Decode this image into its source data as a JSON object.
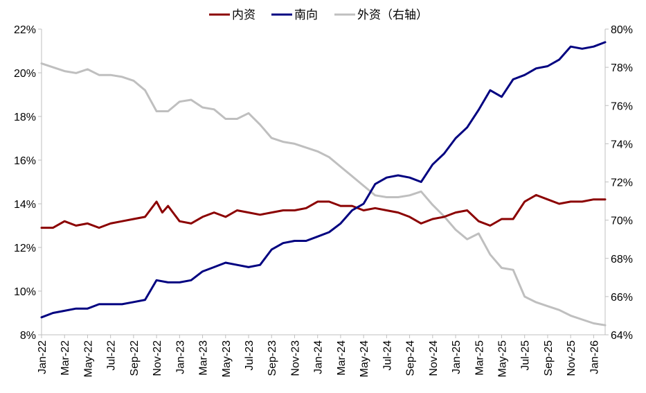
{
  "chart_data": {
    "type": "line",
    "title": "",
    "legend_position": "top-center",
    "grid": false,
    "x_ticks": [
      "Jan-22",
      "Mar-22",
      "May-22",
      "Jul-22",
      "Sep-22",
      "Nov-22",
      "Jan-23",
      "Mar-23",
      "May-23",
      "Jul-23",
      "Sep-23",
      "Nov-23",
      "Jan-24",
      "Mar-24",
      "May-24",
      "Jul-24",
      "Sep-24",
      "Nov-24",
      "Jan-25",
      "Mar-25",
      "May-25",
      "Jul-25",
      "Sep-25",
      "Nov-25",
      "Jan-26"
    ],
    "x_range": [
      "2022-01",
      "2026-02"
    ],
    "y_left": {
      "range": [
        8,
        22
      ],
      "ticks": [
        "8%",
        "10%",
        "12%",
        "14%",
        "16%",
        "18%",
        "20%",
        "22%"
      ]
    },
    "y_right": {
      "range": [
        64,
        80
      ],
      "ticks": [
        "64%",
        "66%",
        "68%",
        "70%",
        "72%",
        "74%",
        "76%",
        "78%",
        "80%"
      ]
    },
    "series": [
      {
        "name": "内资",
        "color": "#8B0000",
        "axis": "left",
        "points": [
          [
            "2022-01",
            12.9
          ],
          [
            "2022-02",
            12.9
          ],
          [
            "2022-03",
            13.2
          ],
          [
            "2022-04",
            13.0
          ],
          [
            "2022-05",
            13.1
          ],
          [
            "2022-06",
            12.9
          ],
          [
            "2022-07",
            13.1
          ],
          [
            "2022-08",
            13.2
          ],
          [
            "2022-09",
            13.3
          ],
          [
            "2022-10",
            13.4
          ],
          [
            "2022-11",
            14.1
          ],
          [
            "2022-11b",
            13.6
          ],
          [
            "2022-12",
            13.9
          ],
          [
            "2023-01",
            13.2
          ],
          [
            "2023-02",
            13.1
          ],
          [
            "2023-03",
            13.4
          ],
          [
            "2023-04",
            13.6
          ],
          [
            "2023-05",
            13.4
          ],
          [
            "2023-06",
            13.7
          ],
          [
            "2023-07",
            13.6
          ],
          [
            "2023-08",
            13.5
          ],
          [
            "2023-09",
            13.6
          ],
          [
            "2023-10",
            13.7
          ],
          [
            "2023-11",
            13.7
          ],
          [
            "2023-12",
            13.8
          ],
          [
            "2024-01",
            14.1
          ],
          [
            "2024-02",
            14.1
          ],
          [
            "2024-03",
            13.9
          ],
          [
            "2024-04",
            13.9
          ],
          [
            "2024-05",
            13.7
          ],
          [
            "2024-06",
            13.8
          ],
          [
            "2024-07",
            13.7
          ],
          [
            "2024-08",
            13.6
          ],
          [
            "2024-09",
            13.4
          ],
          [
            "2024-10",
            13.1
          ],
          [
            "2024-11",
            13.3
          ],
          [
            "2024-12",
            13.4
          ],
          [
            "2025-01",
            13.6
          ],
          [
            "2025-02",
            13.7
          ],
          [
            "2025-03",
            13.2
          ],
          [
            "2025-04",
            13.0
          ],
          [
            "2025-05",
            13.3
          ],
          [
            "2025-06",
            13.3
          ],
          [
            "2025-07",
            14.1
          ],
          [
            "2025-08",
            14.4
          ],
          [
            "2025-09",
            14.2
          ],
          [
            "2025-10",
            14.0
          ],
          [
            "2025-11",
            14.1
          ],
          [
            "2025-12",
            14.1
          ],
          [
            "2026-01",
            14.2
          ],
          [
            "2026-02",
            14.2
          ]
        ]
      },
      {
        "name": "南向",
        "color": "#000080",
        "axis": "left",
        "points": [
          [
            "2022-01",
            8.8
          ],
          [
            "2022-02",
            9.0
          ],
          [
            "2022-03",
            9.1
          ],
          [
            "2022-04",
            9.2
          ],
          [
            "2022-05",
            9.2
          ],
          [
            "2022-06",
            9.4
          ],
          [
            "2022-07",
            9.4
          ],
          [
            "2022-08",
            9.4
          ],
          [
            "2022-09",
            9.5
          ],
          [
            "2022-10",
            9.6
          ],
          [
            "2022-11",
            10.5
          ],
          [
            "2022-12",
            10.4
          ],
          [
            "2023-01",
            10.4
          ],
          [
            "2023-02",
            10.5
          ],
          [
            "2023-03",
            10.9
          ],
          [
            "2023-04",
            11.1
          ],
          [
            "2023-05",
            11.3
          ],
          [
            "2023-06",
            11.2
          ],
          [
            "2023-07",
            11.1
          ],
          [
            "2023-08",
            11.2
          ],
          [
            "2023-09",
            11.9
          ],
          [
            "2023-10",
            12.2
          ],
          [
            "2023-11",
            12.3
          ],
          [
            "2023-12",
            12.3
          ],
          [
            "2024-01",
            12.5
          ],
          [
            "2024-02",
            12.7
          ],
          [
            "2024-03",
            13.1
          ],
          [
            "2024-04",
            13.7
          ],
          [
            "2024-05",
            14.0
          ],
          [
            "2024-06",
            14.9
          ],
          [
            "2024-07",
            15.2
          ],
          [
            "2024-08",
            15.3
          ],
          [
            "2024-09",
            15.2
          ],
          [
            "2024-10",
            15.0
          ],
          [
            "2024-11",
            15.8
          ],
          [
            "2024-12",
            16.3
          ],
          [
            "2025-01",
            17.0
          ],
          [
            "2025-02",
            17.5
          ],
          [
            "2025-03",
            18.3
          ],
          [
            "2025-04",
            19.2
          ],
          [
            "2025-05",
            18.9
          ],
          [
            "2025-06",
            19.7
          ],
          [
            "2025-07",
            19.9
          ],
          [
            "2025-08",
            20.2
          ],
          [
            "2025-09",
            20.3
          ],
          [
            "2025-10",
            20.6
          ],
          [
            "2025-11",
            21.2
          ],
          [
            "2025-12",
            21.1
          ],
          [
            "2026-01",
            21.2
          ],
          [
            "2026-02",
            21.4
          ]
        ]
      },
      {
        "name": "外资（右轴）",
        "color": "#BFBFBF",
        "axis": "right",
        "points": [
          [
            "2022-01",
            78.2
          ],
          [
            "2022-02",
            78.0
          ],
          [
            "2022-03",
            77.8
          ],
          [
            "2022-04",
            77.7
          ],
          [
            "2022-05",
            77.9
          ],
          [
            "2022-06",
            77.6
          ],
          [
            "2022-07",
            77.6
          ],
          [
            "2022-08",
            77.5
          ],
          [
            "2022-09",
            77.3
          ],
          [
            "2022-10",
            76.8
          ],
          [
            "2022-11",
            75.7
          ],
          [
            "2022-12",
            75.7
          ],
          [
            "2023-01",
            76.2
          ],
          [
            "2023-02",
            76.3
          ],
          [
            "2023-03",
            75.9
          ],
          [
            "2023-04",
            75.8
          ],
          [
            "2023-05",
            75.3
          ],
          [
            "2023-06",
            75.3
          ],
          [
            "2023-07",
            75.6
          ],
          [
            "2023-08",
            75.0
          ],
          [
            "2023-09",
            74.3
          ],
          [
            "2023-10",
            74.1
          ],
          [
            "2023-11",
            74.0
          ],
          [
            "2023-12",
            73.8
          ],
          [
            "2024-01",
            73.6
          ],
          [
            "2024-02",
            73.3
          ],
          [
            "2024-03",
            72.8
          ],
          [
            "2024-04",
            72.3
          ],
          [
            "2024-05",
            71.8
          ],
          [
            "2024-06",
            71.3
          ],
          [
            "2024-07",
            71.2
          ],
          [
            "2024-08",
            71.2
          ],
          [
            "2024-09",
            71.3
          ],
          [
            "2024-10",
            71.5
          ],
          [
            "2024-11",
            70.8
          ],
          [
            "2024-12",
            70.2
          ],
          [
            "2025-01",
            69.5
          ],
          [
            "2025-02",
            69.0
          ],
          [
            "2025-03",
            69.3
          ],
          [
            "2025-04",
            68.2
          ],
          [
            "2025-05",
            67.5
          ],
          [
            "2025-06",
            67.4
          ],
          [
            "2025-07",
            66.0
          ],
          [
            "2025-08",
            65.7
          ],
          [
            "2025-09",
            65.5
          ],
          [
            "2025-10",
            65.3
          ],
          [
            "2025-11",
            65.0
          ],
          [
            "2025-12",
            64.8
          ],
          [
            "2026-01",
            64.6
          ],
          [
            "2026-02",
            64.5
          ]
        ]
      }
    ]
  }
}
